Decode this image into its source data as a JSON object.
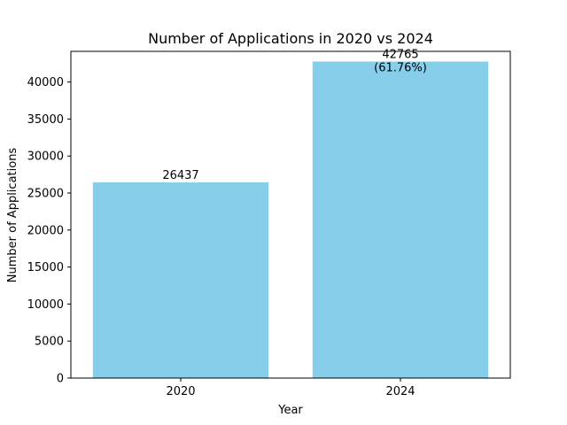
{
  "chart_data": {
    "type": "bar",
    "title": "Number of Applications in 2020 vs 2024",
    "xlabel": "Year",
    "ylabel": "Number of Applications",
    "categories": [
      "2020",
      "2024"
    ],
    "values": [
      26437,
      42765
    ],
    "data_labels": [
      "26437",
      "42765"
    ],
    "extra_labels": [
      "",
      "(61.76%)"
    ],
    "ylim": [
      0,
      44141
    ],
    "yticks": [
      0,
      5000,
      10000,
      15000,
      20000,
      25000,
      30000,
      35000,
      40000
    ],
    "bar_color": "#87ceeb",
    "grid": false
  }
}
